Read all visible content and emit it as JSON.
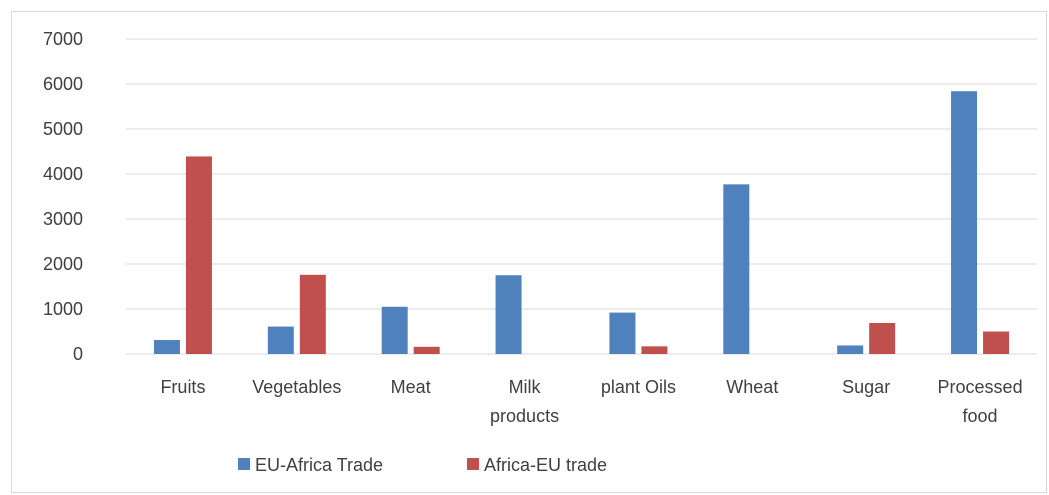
{
  "chart_data": {
    "type": "bar",
    "categories": [
      "Fruits",
      "Vegetables",
      "Meat",
      "Milk products",
      "plant Oils",
      "Wheat",
      "Sugar",
      "Processed food"
    ],
    "category_lines": [
      [
        "Fruits"
      ],
      [
        "Vegetables"
      ],
      [
        "Meat"
      ],
      [
        "Milk",
        "products"
      ],
      [
        "plant Oils"
      ],
      [
        "Wheat"
      ],
      [
        "Sugar"
      ],
      [
        "Processed",
        "food"
      ]
    ],
    "series": [
      {
        "name": "EU-Africa Trade",
        "color": "#4f81bd",
        "values": [
          310,
          610,
          1050,
          1750,
          920,
          3770,
          190,
          5840
        ]
      },
      {
        "name": "Africa-EU trade",
        "color": "#c0504d",
        "values": [
          4390,
          1760,
          160,
          0,
          170,
          0,
          690,
          500
        ]
      }
    ],
    "yticks": [
      0,
      1000,
      2000,
      3000,
      4000,
      5000,
      6000,
      7000
    ],
    "ylim": [
      0,
      7000
    ],
    "grid": true,
    "legend_position": "bottom",
    "title": "",
    "xlabel": "",
    "ylabel": ""
  },
  "colors": {
    "grid": "#d9d9d9",
    "axis_text": "#404040"
  }
}
